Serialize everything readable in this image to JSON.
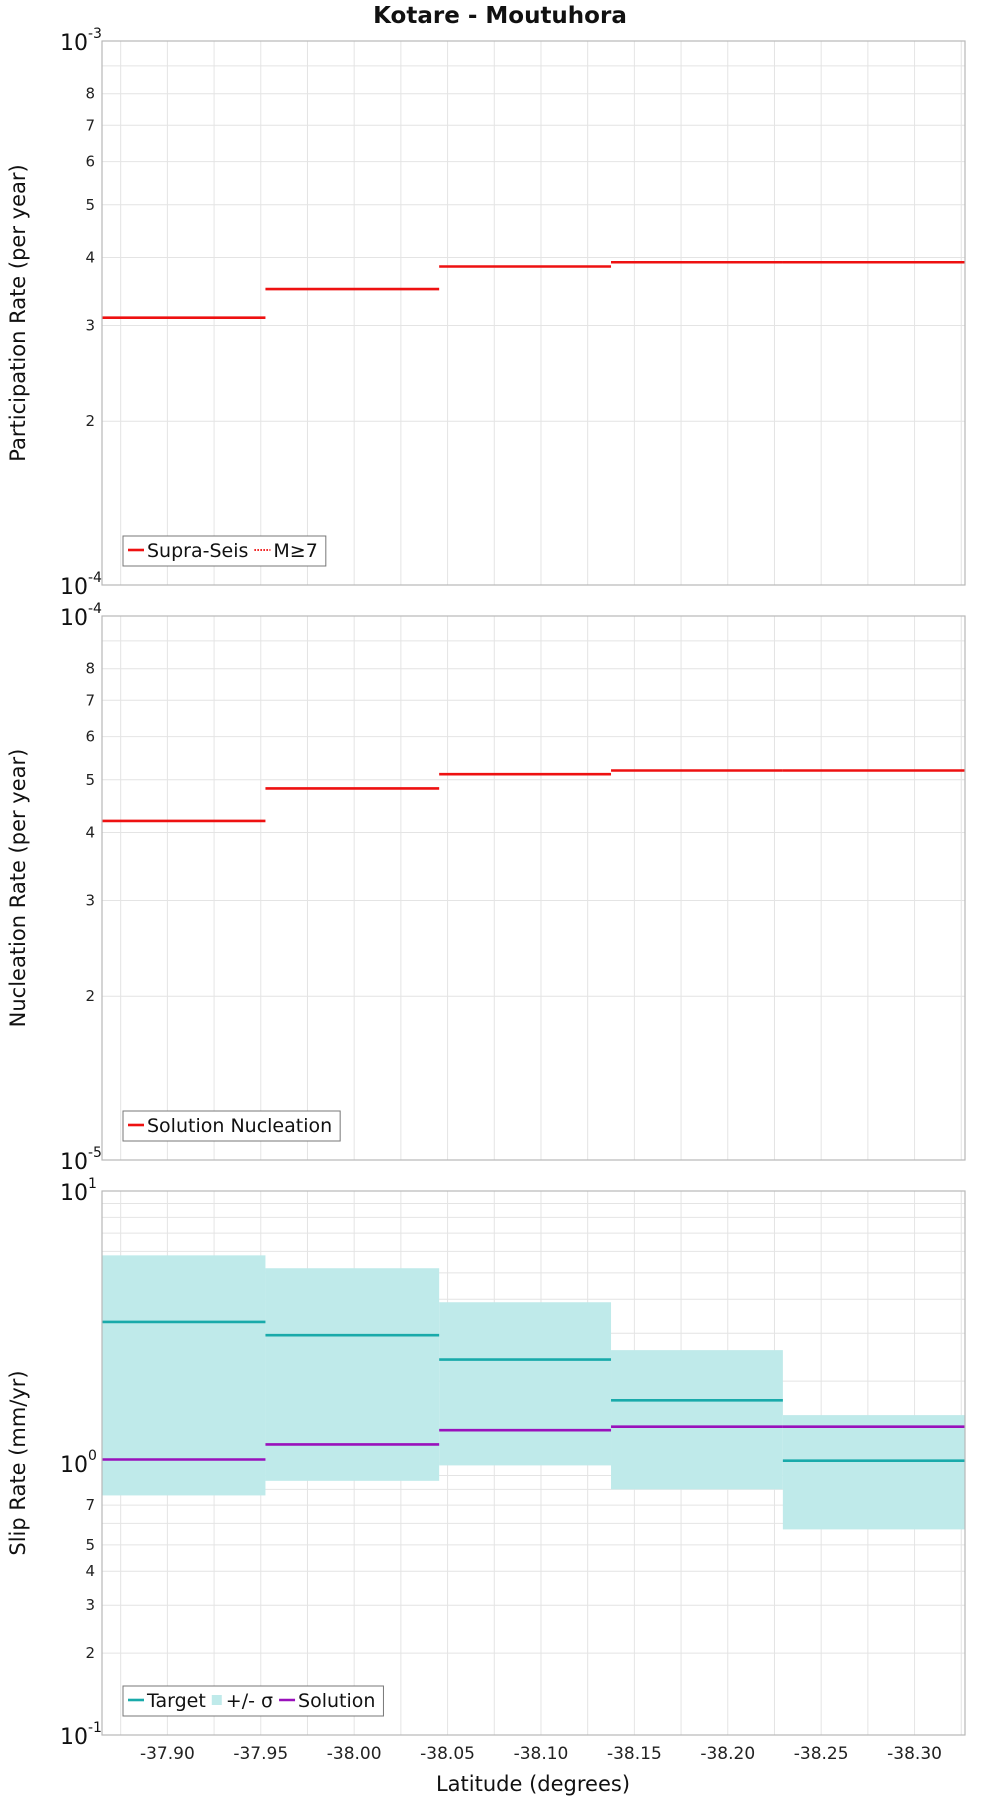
{
  "title": "Kotare - Moutuhora",
  "xlabel": "Latitude (degrees)",
  "x_tick_labels": [
    "-37.90",
    "-37.95",
    "-38.00",
    "-38.05",
    "-38.10",
    "-38.15",
    "-38.20",
    "-38.25",
    "-38.30"
  ],
  "colors": {
    "red": "#ee1111",
    "teal": "#19aaaa",
    "band": "#bfeaea",
    "purple": "#9911bb",
    "grid": "#e4e4e4",
    "frame": "#b8b8b8"
  },
  "chart_data": [
    {
      "type": "line",
      "id": "participation",
      "ylabel": "Participation Rate (per year)",
      "yscale": "log",
      "ylim": [
        0.0001,
        0.001
      ],
      "xlim": [
        -37.865,
        -38.327
      ],
      "x_edges": [
        -37.865,
        -37.9525,
        -38.0455,
        -38.1375,
        -38.2295,
        -38.327
      ],
      "y_decade_labels": [
        {
          "base": "10",
          "exp": "-4"
        },
        {
          "base": "10",
          "exp": "-3"
        }
      ],
      "y_minor_labels": [
        "2",
        "3",
        "4",
        "5",
        "6",
        "7",
        "8"
      ],
      "series": [
        {
          "name": "Supra-Seis",
          "style": "solid",
          "color": "#ee1111",
          "values": [
            0.00031,
            0.00035,
            0.000385,
            0.000392,
            0.000392
          ]
        },
        {
          "name": "M≥7",
          "style": "dotted",
          "color": "#ee1111",
          "values": [
            null,
            null,
            null,
            0.000392,
            0.000392
          ]
        }
      ],
      "legend": [
        "Supra-Seis",
        "M≥7"
      ]
    },
    {
      "type": "line",
      "id": "nucleation",
      "ylabel": "Nucleation Rate (per year)",
      "yscale": "log",
      "ylim": [
        1e-05,
        0.0001
      ],
      "xlim": [
        -37.865,
        -38.327
      ],
      "x_edges": [
        -37.865,
        -37.9525,
        -38.0455,
        -38.1375,
        -38.2295,
        -38.327
      ],
      "y_decade_labels": [
        {
          "base": "10",
          "exp": "-5"
        },
        {
          "base": "10",
          "exp": "-4"
        }
      ],
      "y_minor_labels": [
        "2",
        "3",
        "4",
        "5",
        "6",
        "7",
        "8"
      ],
      "series": [
        {
          "name": "Solution Nucleation",
          "style": "solid",
          "color": "#ee1111",
          "values": [
            4.2e-05,
            4.82e-05,
            5.12e-05,
            5.2e-05,
            5.2e-05
          ]
        }
      ],
      "legend": [
        "Solution Nucleation"
      ]
    },
    {
      "type": "line",
      "id": "slip",
      "ylabel": "Slip Rate (mm/yr)",
      "yscale": "log",
      "ylim": [
        0.1,
        10
      ],
      "xlim": [
        -37.865,
        -38.327
      ],
      "x_edges": [
        -37.865,
        -37.9525,
        -38.0455,
        -38.1375,
        -38.2295,
        -38.327
      ],
      "y_decade_labels": [
        {
          "base": "10",
          "exp": "-1"
        },
        {
          "base": "10",
          "exp": "0"
        },
        {
          "base": "10",
          "exp": "1"
        }
      ],
      "y_minor_labels": [
        "2",
        "3",
        "4",
        "5",
        "7"
      ],
      "series": [
        {
          "name": "Target",
          "style": "solid",
          "color": "#19aaaa",
          "values": [
            3.3,
            2.95,
            2.4,
            1.7,
            1.02
          ]
        },
        {
          "name": "Solution",
          "style": "solid",
          "color": "#9911bb",
          "values": [
            1.03,
            1.17,
            1.32,
            1.36,
            1.36
          ]
        }
      ],
      "band": {
        "name": "+/- σ",
        "lower": [
          0.76,
          0.86,
          0.98,
          0.8,
          0.57
        ],
        "upper": [
          5.8,
          5.2,
          3.9,
          2.6,
          1.5
        ]
      },
      "legend": [
        "Target",
        "+/- σ",
        "Solution"
      ]
    }
  ]
}
